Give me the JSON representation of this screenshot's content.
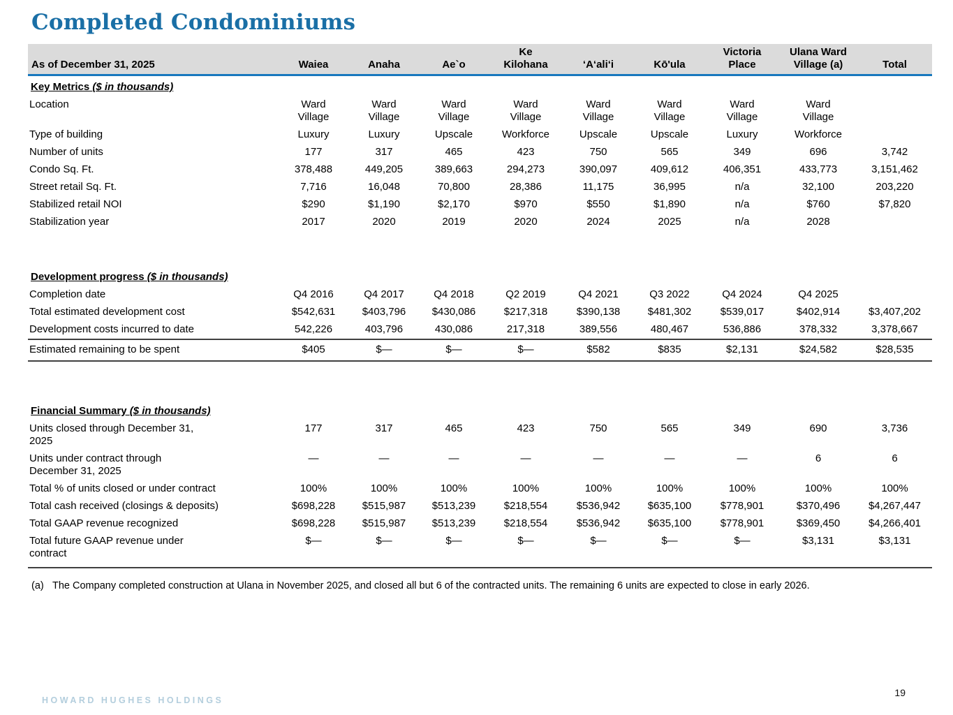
{
  "title": "Completed Condominiums",
  "colors": {
    "accent_blue": "#1a6fa6",
    "header_band_gray": "#dbdbdb",
    "rule_blue": "#1878be",
    "table_rule_dark": "#404040",
    "brand_light_blue": "#b3cedd"
  },
  "table": {
    "corner_label": "As of December 31, 2025",
    "columns": [
      "Waiea",
      "Anaha",
      "Ae`o",
      "Ke\nKilohana",
      "‘A‘ali‘i",
      "Kō'ula",
      "Victoria\nPlace",
      "Ulana Ward\nVillage (a)",
      "Total"
    ],
    "sections": [
      {
        "heading": "Key Metrics ",
        "units_note": "($ in thousands)",
        "rows": [
          {
            "label": "Location",
            "indent": 1,
            "values": [
              "Ward\nVillage",
              "Ward\nVillage",
              "Ward\nVillage",
              "Ward\nVillage",
              "Ward\nVillage",
              "Ward\nVillage",
              "Ward\nVillage",
              "Ward\nVillage",
              ""
            ]
          },
          {
            "label": "Type of building",
            "indent": 1,
            "values": [
              "Luxury",
              "Luxury",
              "Upscale",
              "Workforce",
              "Upscale",
              "Upscale",
              "Luxury",
              "Workforce",
              ""
            ]
          },
          {
            "label": "Number of units",
            "indent": 1,
            "values": [
              "177",
              "317",
              "465",
              "423",
              "750",
              "565",
              "349",
              "696",
              "3,742"
            ]
          },
          {
            "label": "Condo Sq. Ft.",
            "indent": 1,
            "values": [
              "378,488",
              "449,205",
              "389,663",
              "294,273",
              "390,097",
              "409,612",
              "406,351",
              "433,773",
              "3,151,462"
            ]
          },
          {
            "label": "Street retail Sq. Ft.",
            "indent": 1,
            "values": [
              "7,716",
              "16,048",
              "70,800",
              "28,386",
              "11,175",
              "36,995",
              "n/a",
              "32,100",
              "203,220"
            ]
          },
          {
            "label": "Stabilized retail NOI",
            "indent": 1,
            "values": [
              "$290",
              "$1,190",
              "$2,170",
              "$970",
              "$550",
              "$1,890",
              "n/a",
              "$760",
              "$7,820"
            ]
          },
          {
            "label": "Stabilization year",
            "indent": 1,
            "values": [
              "2017",
              "2020",
              "2019",
              "2020",
              "2024",
              "2025",
              "n/a",
              "2028",
              ""
            ]
          }
        ]
      },
      {
        "heading": "Development progress ",
        "units_note": "($ in thousands)",
        "rows": [
          {
            "label": "Completion date",
            "indent": 1,
            "values": [
              "Q4 2016",
              "Q4 2017",
              "Q4 2018",
              "Q2 2019",
              "Q4 2021",
              "Q3 2022",
              "Q4 2024",
              "Q4 2025",
              ""
            ]
          },
          {
            "label": "Total estimated development cost",
            "indent": 2,
            "values": [
              "$542,631",
              "$403,796",
              "$430,086",
              "$217,318",
              "$390,138",
              "$481,302",
              "$539,017",
              "$402,914",
              "$3,407,202"
            ]
          },
          {
            "label": "Development costs incurred to date",
            "indent": 2,
            "values": [
              "542,226",
              "403,796",
              "430,086",
              "217,318",
              "389,556",
              "480,467",
              "536,886",
              "378,332",
              "3,378,667"
            ]
          },
          {
            "label": "Estimated remaining to be spent",
            "indent": 0,
            "style": "ruled",
            "values": [
              "$405",
              "$—",
              "$—",
              "$—",
              "$582",
              "$835",
              "$2,131",
              "$24,582",
              "$28,535"
            ]
          }
        ]
      },
      {
        "heading": "Financial Summary ",
        "units_note": "($ in thousands)",
        "rows": [
          {
            "label": "Units closed through December 31,\n2025",
            "indent": 2,
            "values": [
              "177",
              "317",
              "465",
              "423",
              "750",
              "565",
              "349",
              "690",
              "3,736"
            ]
          },
          {
            "label": "Units under contract through\nDecember 31, 2025",
            "indent": 2,
            "values": [
              "—",
              "—",
              "—",
              "—",
              "—",
              "—",
              "—",
              "6",
              "6"
            ]
          },
          {
            "label": "Total % of units closed or under contract",
            "indent": 2,
            "values": [
              "100%",
              "100%",
              "100%",
              "100%",
              "100%",
              "100%",
              "100%",
              "100%",
              "100%"
            ]
          },
          {
            "label": "Total cash received (closings & deposits)",
            "indent": 2,
            "values": [
              "$698,228",
              "$515,987",
              "$513,239",
              "$218,554",
              "$536,942",
              "$635,100",
              "$778,901",
              "$370,496",
              "$4,267,447"
            ]
          },
          {
            "label": "Total GAAP revenue recognized",
            "indent": 2,
            "values": [
              "$698,228",
              "$515,987",
              "$513,239",
              "$218,554",
              "$536,942",
              "$635,100",
              "$778,901",
              "$369,450",
              "$4,266,401"
            ]
          },
          {
            "label": "Total future GAAP revenue under\ncontract",
            "indent": 2,
            "style": "bottom-rule",
            "values": [
              "$—",
              "$—",
              "$—",
              "$—",
              "$—",
              "$—",
              "$—",
              "$3,131",
              "$3,131"
            ]
          }
        ]
      }
    ]
  },
  "footnote": {
    "marker": "(a)",
    "text": "The Company completed construction at Ulana in November 2025, and closed all but 6 of the contracted units. The remaining 6 units are expected to close in early 2026."
  },
  "footer": {
    "brand": "HOWARD HUGHES HOLDINGS",
    "page_number": "19"
  }
}
